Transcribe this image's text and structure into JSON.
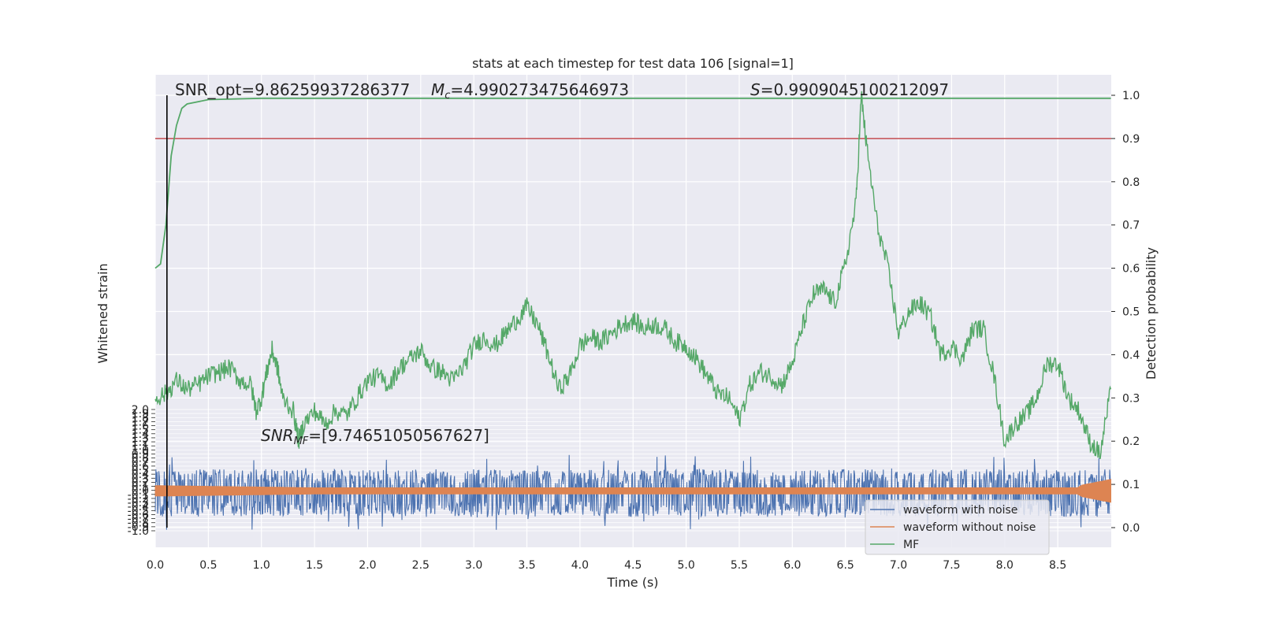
{
  "chart_data": {
    "type": "line",
    "title": "stats at each timestep for test data 106 [signal=1]",
    "xlabel": "Time (s)",
    "ylabel_left": "Whitened strain",
    "ylabel_right": "Detection probability",
    "xlim": [
      0.0,
      9.0
    ],
    "ylim_right": [
      -0.05,
      1.05
    ],
    "xticks": [
      "0.0",
      "0.5",
      "1.0",
      "1.5",
      "2.0",
      "2.5",
      "3.0",
      "3.5",
      "4.0",
      "4.5",
      "5.0",
      "5.5",
      "6.0",
      "6.5",
      "7.0",
      "7.5",
      "8.0",
      "8.5"
    ],
    "yticks_right": [
      "0.0",
      "0.1",
      "0.2",
      "0.3",
      "0.4",
      "0.5",
      "0.6",
      "0.7",
      "0.8",
      "0.9",
      "1.0"
    ],
    "left_axis_visible_ticks": [
      "2.0",
      "1.9",
      "1.8",
      "1.7",
      "1.6",
      "1.5",
      "1.4",
      "1.3",
      "1.2",
      "1.1",
      "1.0",
      "0.9",
      "0.8",
      "0.7",
      "0.6",
      "0.5",
      "0.4",
      "0.3",
      "0.2",
      "0.1",
      "0.0",
      "-0.1",
      "-0.2",
      "-0.3",
      "-0.4",
      "-0.5",
      "-0.6",
      "-0.7",
      "-0.8",
      "-0.9",
      "-1.0"
    ],
    "threshold": 0.9,
    "marker_time": 0.11,
    "annotations": {
      "snr_opt": "SNR_opt=9.86259937286377",
      "mc_symbol": "M",
      "mc_sub": "c",
      "mc_value": "=4.990273475646973",
      "s_symbol": "S",
      "s_value": "=0.9909045100212097",
      "snr_mf_symbol": "SNR",
      "snr_mf_sub": "MF",
      "snr_mf_value": "=[9.74651050567627]"
    },
    "legend": {
      "placement": "lower-right",
      "entries": [
        "waveform with noise",
        "waveform without noise",
        "MF"
      ]
    },
    "series": [
      {
        "name": "waveform with noise",
        "kind": "noise-band",
        "color": "#4c72b0",
        "center": 0.08,
        "amplitude": 0.055
      },
      {
        "name": "waveform without noise",
        "kind": "chirp-band",
        "color": "#dd8452",
        "center": 0.085,
        "amplitude": 0.012
      },
      {
        "name": "MF",
        "kind": "line",
        "color": "#55a868",
        "points": [
          [
            0.0,
            0.3
          ],
          [
            0.1,
            0.31
          ],
          [
            0.2,
            0.34
          ],
          [
            0.3,
            0.32
          ],
          [
            0.4,
            0.33
          ],
          [
            0.5,
            0.35
          ],
          [
            0.6,
            0.36
          ],
          [
            0.7,
            0.37
          ],
          [
            0.8,
            0.34
          ],
          [
            0.9,
            0.33
          ],
          [
            0.95,
            0.27
          ],
          [
            1.0,
            0.3
          ],
          [
            1.05,
            0.36
          ],
          [
            1.1,
            0.41
          ],
          [
            1.15,
            0.37
          ],
          [
            1.2,
            0.3
          ],
          [
            1.3,
            0.27
          ],
          [
            1.35,
            0.2
          ],
          [
            1.4,
            0.24
          ],
          [
            1.5,
            0.27
          ],
          [
            1.6,
            0.24
          ],
          [
            1.7,
            0.27
          ],
          [
            1.8,
            0.26
          ],
          [
            1.9,
            0.3
          ],
          [
            2.0,
            0.34
          ],
          [
            2.1,
            0.35
          ],
          [
            2.2,
            0.33
          ],
          [
            2.3,
            0.37
          ],
          [
            2.4,
            0.39
          ],
          [
            2.5,
            0.41
          ],
          [
            2.6,
            0.37
          ],
          [
            2.7,
            0.36
          ],
          [
            2.8,
            0.34
          ],
          [
            2.9,
            0.37
          ],
          [
            3.0,
            0.42
          ],
          [
            3.1,
            0.44
          ],
          [
            3.2,
            0.42
          ],
          [
            3.3,
            0.45
          ],
          [
            3.4,
            0.48
          ],
          [
            3.5,
            0.51
          ],
          [
            3.6,
            0.47
          ],
          [
            3.7,
            0.4
          ],
          [
            3.8,
            0.32
          ],
          [
            3.9,
            0.35
          ],
          [
            4.0,
            0.42
          ],
          [
            4.1,
            0.44
          ],
          [
            4.2,
            0.43
          ],
          [
            4.3,
            0.45
          ],
          [
            4.4,
            0.47
          ],
          [
            4.5,
            0.48
          ],
          [
            4.6,
            0.46
          ],
          [
            4.7,
            0.47
          ],
          [
            4.8,
            0.46
          ],
          [
            4.9,
            0.43
          ],
          [
            5.0,
            0.42
          ],
          [
            5.1,
            0.39
          ],
          [
            5.2,
            0.35
          ],
          [
            5.3,
            0.31
          ],
          [
            5.4,
            0.3
          ],
          [
            5.5,
            0.25
          ],
          [
            5.6,
            0.33
          ],
          [
            5.7,
            0.36
          ],
          [
            5.8,
            0.35
          ],
          [
            5.9,
            0.33
          ],
          [
            6.0,
            0.38
          ],
          [
            6.1,
            0.47
          ],
          [
            6.2,
            0.54
          ],
          [
            6.3,
            0.55
          ],
          [
            6.4,
            0.52
          ],
          [
            6.5,
            0.61
          ],
          [
            6.6,
            0.75
          ],
          [
            6.65,
            1.0
          ],
          [
            6.7,
            0.88
          ],
          [
            6.8,
            0.7
          ],
          [
            6.9,
            0.6
          ],
          [
            7.0,
            0.45
          ],
          [
            7.1,
            0.5
          ],
          [
            7.2,
            0.52
          ],
          [
            7.3,
            0.49
          ],
          [
            7.4,
            0.4
          ],
          [
            7.5,
            0.42
          ],
          [
            7.6,
            0.39
          ],
          [
            7.7,
            0.46
          ],
          [
            7.8,
            0.46
          ],
          [
            7.9,
            0.35
          ],
          [
            8.0,
            0.2
          ],
          [
            8.1,
            0.24
          ],
          [
            8.2,
            0.26
          ],
          [
            8.3,
            0.3
          ],
          [
            8.4,
            0.38
          ],
          [
            8.5,
            0.38
          ],
          [
            8.6,
            0.3
          ],
          [
            8.7,
            0.27
          ],
          [
            8.8,
            0.2
          ],
          [
            8.9,
            0.17
          ],
          [
            9.0,
            0.32
          ]
        ]
      },
      {
        "name": "",
        "kind": "line",
        "color": "#55a868",
        "points": [
          [
            0.0,
            0.6
          ],
          [
            0.05,
            0.61
          ],
          [
            0.1,
            0.7
          ],
          [
            0.15,
            0.86
          ],
          [
            0.2,
            0.93
          ],
          [
            0.25,
            0.97
          ],
          [
            0.3,
            0.98
          ],
          [
            0.5,
            0.99
          ],
          [
            1.0,
            0.993
          ],
          [
            9.0,
            0.993
          ]
        ]
      }
    ],
    "colors": {
      "plot_background": "#eaeaf2",
      "grid": "#ffffff",
      "threshold_line": "#c44e52",
      "marker_line": "#000000"
    }
  }
}
